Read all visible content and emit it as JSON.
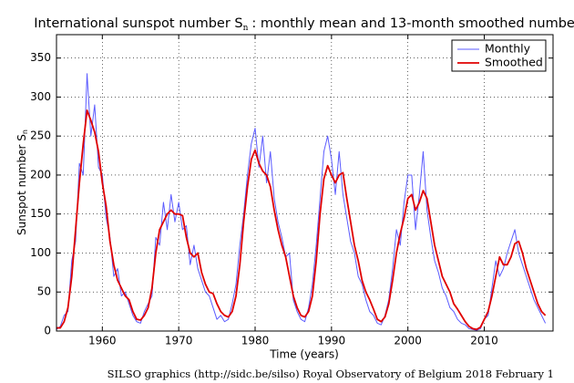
{
  "chart_data": {
    "type": "line",
    "title": "International sunspot number S",
    "title_subscript": "n",
    "title_rest": ": monthly mean and 13-month smoothed number",
    "x_label": "Time (years)",
    "y_label": "Sunspot number S",
    "y_label_subscript": "n",
    "footer": "SILSO graphics (http://sidc.be/silso)  Royal Observatory of Belgium  2018 February 1",
    "xlim": [
      1954,
      2019
    ],
    "ylim": [
      0,
      380
    ],
    "xticks": [
      1960,
      1970,
      1980,
      1990,
      2000,
      2010
    ],
    "yticks": [
      0,
      50,
      100,
      150,
      200,
      250,
      300,
      350
    ],
    "grid": true,
    "legend": "upper right",
    "x": [
      1954.0,
      1954.5,
      1955.0,
      1955.5,
      1956.0,
      1956.5,
      1957.0,
      1957.5,
      1958.0,
      1958.5,
      1959.0,
      1959.5,
      1960.0,
      1960.5,
      1961.0,
      1961.5,
      1962.0,
      1962.5,
      1963.0,
      1963.5,
      1964.0,
      1964.5,
      1965.0,
      1965.5,
      1966.0,
      1966.5,
      1967.0,
      1967.5,
      1968.0,
      1968.5,
      1969.0,
      1969.5,
      1970.0,
      1970.5,
      1971.0,
      1971.5,
      1972.0,
      1972.5,
      1973.0,
      1973.5,
      1974.0,
      1974.5,
      1975.0,
      1975.5,
      1976.0,
      1976.5,
      1977.0,
      1977.5,
      1978.0,
      1978.5,
      1979.0,
      1979.5,
      1980.0,
      1980.5,
      1981.0,
      1981.5,
      1982.0,
      1982.5,
      1983.0,
      1983.5,
      1984.0,
      1984.5,
      1985.0,
      1985.5,
      1986.0,
      1986.5,
      1987.0,
      1987.5,
      1988.0,
      1988.5,
      1989.0,
      1989.5,
      1990.0,
      1990.5,
      1991.0,
      1991.5,
      1992.0,
      1992.5,
      1993.0,
      1993.5,
      1994.0,
      1994.5,
      1995.0,
      1995.5,
      1996.0,
      1996.5,
      1997.0,
      1997.5,
      1998.0,
      1998.5,
      1999.0,
      1999.5,
      2000.0,
      2000.5,
      2001.0,
      2001.5,
      2002.0,
      2002.5,
      2003.0,
      2003.5,
      2004.0,
      2004.5,
      2005.0,
      2005.5,
      2006.0,
      2006.5,
      2007.0,
      2007.5,
      2008.0,
      2008.5,
      2009.0,
      2009.5,
      2010.0,
      2010.5,
      2011.0,
      2011.5,
      2012.0,
      2012.5,
      2013.0,
      2013.5,
      2014.0,
      2014.5,
      2015.0,
      2015.5,
      2016.0,
      2016.5,
      2017.0,
      2017.5,
      2018.0
    ],
    "series": [
      {
        "name": "Monthly",
        "color": "#5b5bff",
        "width": 1,
        "values": [
          2,
          6,
          20,
          25,
          90,
          115,
          215,
          200,
          330,
          250,
          290,
          210,
          200,
          145,
          120,
          70,
          80,
          45,
          50,
          35,
          20,
          12,
          10,
          25,
          35,
          45,
          120,
          110,
          165,
          130,
          175,
          140,
          165,
          130,
          135,
          85,
          110,
          80,
          65,
          50,
          45,
          30,
          15,
          20,
          12,
          15,
          35,
          60,
          110,
          150,
          200,
          240,
          260,
          210,
          250,
          190,
          230,
          170,
          140,
          120,
          95,
          100,
          40,
          25,
          15,
          12,
          30,
          60,
          110,
          170,
          230,
          250,
          220,
          175,
          230,
          175,
          145,
          115,
          100,
          70,
          60,
          40,
          25,
          20,
          10,
          8,
          20,
          40,
          80,
          130,
          110,
          165,
          200,
          200,
          130,
          175,
          230,
          155,
          120,
          90,
          75,
          55,
          45,
          30,
          25,
          15,
          10,
          8,
          3,
          2,
          1,
          3,
          15,
          20,
          55,
          90,
          70,
          80,
          100,
          115,
          130,
          100,
          85,
          70,
          55,
          40,
          30,
          20,
          10
        ]
      },
      {
        "name": "Smoothed",
        "color": "#e00000",
        "width": 1.8,
        "values": [
          4,
          4,
          12,
          30,
          70,
          130,
          190,
          240,
          283,
          270,
          255,
          230,
          190,
          160,
          115,
          85,
          65,
          55,
          45,
          40,
          25,
          15,
          14,
          20,
          30,
          55,
          100,
          130,
          140,
          150,
          155,
          150,
          150,
          148,
          120,
          100,
          95,
          100,
          75,
          60,
          50,
          48,
          35,
          25,
          20,
          18,
          25,
          45,
          85,
          140,
          185,
          220,
          232,
          215,
          205,
          200,
          185,
          155,
          130,
          110,
          95,
          70,
          45,
          30,
          20,
          18,
          25,
          45,
          90,
          150,
          195,
          212,
          200,
          190,
          200,
          203,
          170,
          140,
          110,
          90,
          65,
          50,
          40,
          28,
          15,
          12,
          18,
          35,
          65,
          100,
          125,
          145,
          170,
          175,
          155,
          165,
          180,
          170,
          140,
          110,
          90,
          70,
          60,
          50,
          35,
          28,
          20,
          12,
          6,
          3,
          2,
          5,
          15,
          25,
          45,
          70,
          95,
          85,
          85,
          95,
          112,
          115,
          100,
          80,
          65,
          50,
          35,
          25,
          20
        ]
      }
    ]
  }
}
